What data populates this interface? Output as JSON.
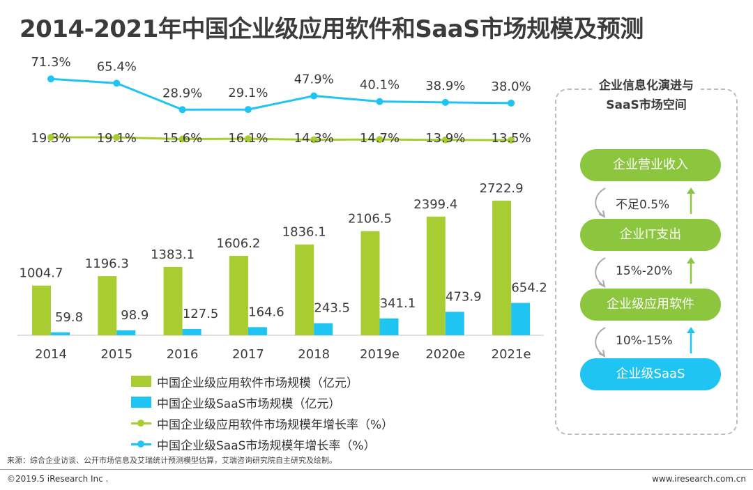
{
  "title": "2014-2021年中国企业级应用软件和SaaS市场规模及预测",
  "chart_data": {
    "type": "bar",
    "categories": [
      "2014",
      "2015",
      "2016",
      "2017",
      "2018",
      "2019e",
      "2020e",
      "2021e"
    ],
    "series": [
      {
        "name": "中国企业级应用软件市场规模（亿元）",
        "type": "bar",
        "color": "#a8cd32",
        "values": [
          1004.7,
          1196.3,
          1383.1,
          1606.2,
          1836.1,
          2106.5,
          2399.4,
          2722.9
        ]
      },
      {
        "name": "中国企业级SaaS市场规模（亿元）",
        "type": "bar",
        "color": "#1fc4f2",
        "values": [
          59.8,
          98.9,
          127.5,
          164.6,
          243.5,
          341.1,
          473.9,
          654.2
        ]
      },
      {
        "name": "中国企业级应用软件市场规模年增长率（%）",
        "type": "line",
        "color": "#a8cd32",
        "values": [
          19.3,
          19.1,
          15.6,
          16.1,
          14.3,
          14.7,
          13.9,
          13.5
        ]
      },
      {
        "name": "中国企业级SaaS市场规模年增长率（%）",
        "type": "line",
        "color": "#1fc4f2",
        "values": [
          71.3,
          65.4,
          28.9,
          29.1,
          47.9,
          40.1,
          38.9,
          38.0
        ]
      }
    ],
    "value_labels": {
      "software_market": [
        "1004.7",
        "1196.3",
        "1383.1",
        "1606.2",
        "1836.1",
        "2106.5",
        "2399.4",
        "2722.9"
      ],
      "saas_market": [
        "59.8",
        "98.9",
        "127.5",
        "164.6",
        "243.5",
        "341.1",
        "473.9",
        "654.2"
      ],
      "software_growth": [
        "19.3%",
        "19.1%",
        "15.6%",
        "16.1%",
        "14.3%",
        "14.7%",
        "13.9%",
        "13.5%"
      ],
      "saas_growth": [
        "71.3%",
        "65.4%",
        "28.9%",
        "29.1%",
        "47.9%",
        "40.1%",
        "38.9%",
        "38.0%"
      ]
    },
    "legend_position": "bottom",
    "grid": false
  },
  "legend": {
    "software_market": "中国企业级应用软件市场规模（亿元）",
    "saas_market": "中国企业级SaaS市场规模（亿元）",
    "software_growth": "中国企业级应用软件市场规模年增长率（%）",
    "saas_growth": "中国企业级SaaS市场规模年增长率（%）"
  },
  "side_panel": {
    "title_line1": "企业信息化演进与",
    "title_line2": "SaaS市场空间",
    "levels": [
      "企业营业收入",
      "企业IT支出",
      "企业级应用软件",
      "企业级SaaS"
    ],
    "ratios": [
      "不足0.5%",
      "15%-20%",
      "10%-15%"
    ]
  },
  "source": "来源：综合企业访谈、公开市场信息及艾瑞统计预测模型估算，艾瑞咨询研究院自主研究及绘制。",
  "footer": {
    "copyright": "©2019.5 iResearch Inc .",
    "website": "www.iresearch.com.cn"
  }
}
